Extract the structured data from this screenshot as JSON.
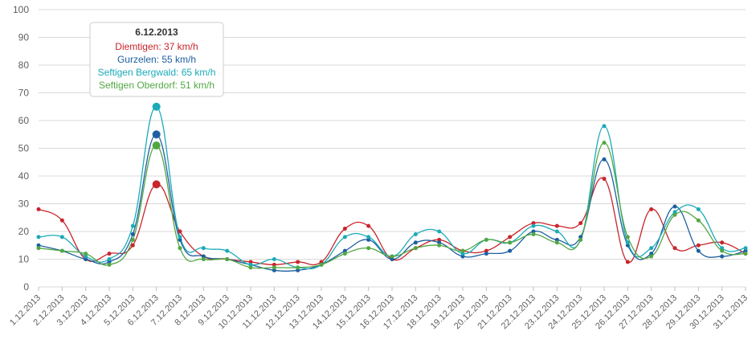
{
  "chart_data": {
    "type": "line",
    "ylim": [
      0,
      100
    ],
    "yticks": [
      0,
      10,
      20,
      30,
      40,
      50,
      60,
      70,
      80,
      90,
      100
    ],
    "grid": true,
    "categories": [
      "1.12.2013",
      "2.12.2013",
      "3.12.2013",
      "4.12.2013",
      "5.12.2013",
      "6.12.2013",
      "7.12.2013",
      "8.12.2013",
      "9.12.2013",
      "10.12.2013",
      "11.12.2013",
      "12.12.2013",
      "13.12.2013",
      "14.12.2013",
      "15.12.2013",
      "16.12.2013",
      "17.12.2013",
      "18.12.2013",
      "19.12.2013",
      "20.12.2013",
      "21.12.2013",
      "22.12.2013",
      "23.12.2013",
      "24.12.2013",
      "25.12.2013",
      "26.12.2013",
      "27.12.2013",
      "28.12.2013",
      "29.12.2013",
      "30.12.2013",
      "31.12.2013"
    ],
    "series": [
      {
        "name": "Diemtigen",
        "color": "#c8252c",
        "values": [
          28,
          24,
          10,
          12,
          15,
          37,
          20,
          11,
          10,
          9,
          8,
          9,
          9,
          21,
          22,
          10,
          14,
          17,
          13,
          13,
          18,
          23,
          22,
          23,
          39,
          9,
          28,
          14,
          15,
          16,
          12
        ]
      },
      {
        "name": "Gurzelen",
        "color": "#1d5fa0",
        "values": [
          15,
          13,
          10,
          9,
          19,
          55,
          17,
          11,
          10,
          8,
          6,
          6,
          8,
          13,
          17,
          10,
          16,
          16,
          11,
          12,
          13,
          20,
          17,
          18,
          46,
          15,
          12,
          29,
          13,
          11,
          13
        ]
      },
      {
        "name": "Seftigen Bergwald",
        "color": "#1baab8",
        "values": [
          18,
          18,
          11,
          10,
          22,
          65,
          18,
          14,
          13,
          8,
          10,
          7,
          8,
          18,
          18,
          11,
          19,
          20,
          12,
          17,
          16,
          22,
          20,
          17,
          58,
          16,
          14,
          27,
          28,
          14,
          14
        ]
      },
      {
        "name": "Seftigen Oberdorf",
        "color": "#52a743",
        "values": [
          14,
          13,
          12,
          8,
          17,
          51,
          14,
          10,
          10,
          7,
          7,
          7,
          8,
          12,
          14,
          11,
          14,
          15,
          13,
          17,
          16,
          19,
          16,
          17,
          52,
          18,
          11,
          26,
          24,
          13,
          12
        ]
      }
    ],
    "highlight_index": 5,
    "tooltip": {
      "title": "6.12.2013",
      "lines": [
        "Diemtigen: 37 km/h",
        "Gurzelen: 55 km/h",
        "Seftigen Bergwald: 65 km/h",
        "Seftigen Oberdorf: 51 km/h"
      ]
    }
  }
}
